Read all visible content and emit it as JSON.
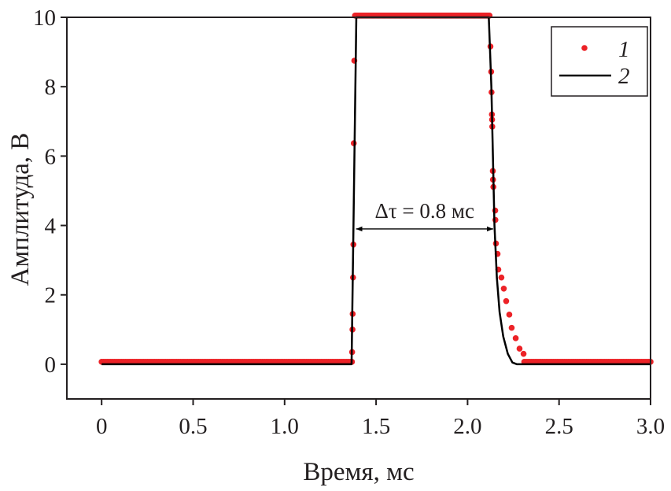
{
  "chart_data": {
    "type": "line",
    "title": "",
    "xlabel": "Время, мс",
    "ylabel": "Амплитуда, В",
    "xlim": [
      -0.19,
      3.0
    ],
    "ylim": [
      -1,
      10
    ],
    "xticks": [
      0,
      0.5,
      1.0,
      1.5,
      2.0,
      2.5,
      3.0
    ],
    "xtick_labels": [
      "0",
      "0.5",
      "1.0",
      "1.5",
      "2.0",
      "2.5",
      "3.0"
    ],
    "yticks": [
      0,
      2,
      4,
      6,
      8,
      10
    ],
    "ytick_labels": [
      "0",
      "2",
      "4",
      "6",
      "8",
      "10"
    ],
    "grid": false,
    "legend_position": "top-right",
    "series": [
      {
        "name": "1",
        "style": "scatter",
        "color": "#ec2227",
        "flat_segments": [
          {
            "x_start": 0.0,
            "x_end": 1.36,
            "step": 0.01,
            "y": 0.07
          },
          {
            "x_start": 1.385,
            "x_end": 2.12,
            "step": 0.005,
            "y": 10.05
          },
          {
            "x_start": 2.31,
            "x_end": 3.0,
            "step": 0.01,
            "y": 0.07
          }
        ],
        "points": [
          [
            1.368,
            0.07
          ],
          [
            1.369,
            0.35
          ],
          [
            1.371,
            1.0
          ],
          [
            1.372,
            1.45
          ],
          [
            1.374,
            2.5
          ],
          [
            1.376,
            3.45
          ],
          [
            1.378,
            6.37
          ],
          [
            1.381,
            8.75
          ],
          [
            2.125,
            9.16
          ],
          [
            2.129,
            8.43
          ],
          [
            2.131,
            7.84
          ],
          [
            2.133,
            7.2
          ],
          [
            2.134,
            7.05
          ],
          [
            2.135,
            6.85
          ],
          [
            2.138,
            5.57
          ],
          [
            2.139,
            5.32
          ],
          [
            2.141,
            5.11
          ],
          [
            2.151,
            4.43
          ],
          [
            2.152,
            4.16
          ],
          [
            2.155,
            3.48
          ],
          [
            2.164,
            3.18
          ],
          [
            2.168,
            2.73
          ],
          [
            2.185,
            2.5
          ],
          [
            2.198,
            2.18
          ],
          [
            2.211,
            1.82
          ],
          [
            2.228,
            1.43
          ],
          [
            2.241,
            1.05
          ],
          [
            2.263,
            0.75
          ],
          [
            2.284,
            0.45
          ],
          [
            2.306,
            0.3
          ]
        ]
      },
      {
        "name": "2",
        "style": "line",
        "color": "#000000",
        "points": [
          [
            0,
            0
          ],
          [
            1.366,
            0
          ],
          [
            1.392,
            10
          ],
          [
            2.116,
            10
          ],
          [
            2.13,
            8
          ],
          [
            2.147,
            4
          ],
          [
            2.16,
            2.5
          ],
          [
            2.175,
            1.5
          ],
          [
            2.195,
            0.8
          ],
          [
            2.22,
            0.3
          ],
          [
            2.245,
            0.05
          ],
          [
            2.27,
            0
          ],
          [
            3.0,
            0
          ]
        ]
      }
    ],
    "annotations": [
      {
        "text": "Δτ = 0.8 мс",
        "arrow_from": [
          1.39,
          3.9
        ],
        "arrow_to": [
          2.14,
          3.9
        ]
      }
    ]
  }
}
